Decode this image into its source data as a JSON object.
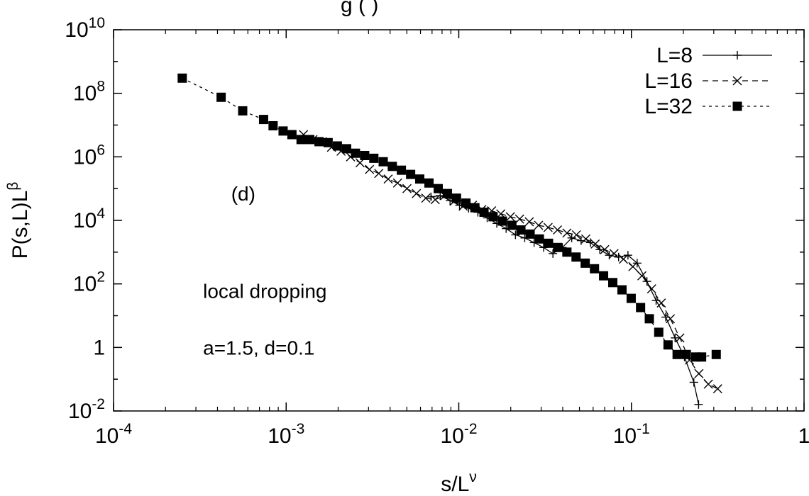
{
  "chart_data": {
    "type": "scatter",
    "title": "",
    "xlabel": {
      "base": "s/L",
      "sup": "ν"
    },
    "ylabel": {
      "base": "P(s,L)L",
      "sup": "β"
    },
    "xscale": "log",
    "yscale": "log",
    "xlim": [
      0.0001,
      1
    ],
    "ylim": [
      0.01,
      10000000000
    ],
    "grid": false,
    "legend_position": "top-right",
    "xticks": [
      {
        "value": 0.0001,
        "base": "10",
        "sup": "-4"
      },
      {
        "value": 0.001,
        "base": "10",
        "sup": "-3"
      },
      {
        "value": 0.01,
        "base": "10",
        "sup": "-2"
      },
      {
        "value": 0.1,
        "base": "10",
        "sup": "-1"
      },
      {
        "value": 1,
        "base": "1",
        "sup": ""
      }
    ],
    "yticks": [
      {
        "value": 0.01,
        "base": "10",
        "sup": "-2"
      },
      {
        "value": 1,
        "base": "1",
        "sup": ""
      },
      {
        "value": 100,
        "base": "10",
        "sup": "2"
      },
      {
        "value": 10000,
        "base": "10",
        "sup": "4"
      },
      {
        "value": 1000000,
        "base": "10",
        "sup": "6"
      },
      {
        "value": 100000000,
        "base": "10",
        "sup": "8"
      },
      {
        "value": 10000000000,
        "base": "10",
        "sup": "10"
      }
    ],
    "annotations": [
      {
        "text": "(d)",
        "x": 0.00048,
        "y": 70000
      },
      {
        "text": "local dropping",
        "x": 0.00033,
        "y": 60
      },
      {
        "text": "a=1.5, d=0.1",
        "x": 0.00033,
        "y": 1
      }
    ],
    "series": [
      {
        "name": "L=8",
        "line": "solid",
        "marker": "plus",
        "points": [
          [
            0.0069,
            55000
          ],
          [
            0.0078,
            60000
          ],
          [
            0.0089,
            42000
          ],
          [
            0.0101,
            30000
          ],
          [
            0.0114,
            24000
          ],
          [
            0.0129,
            18000
          ],
          [
            0.0146,
            12000
          ],
          [
            0.0166,
            8000
          ],
          [
            0.0188,
            5500
          ],
          [
            0.0213,
            3500
          ],
          [
            0.0241,
            2800
          ],
          [
            0.0273,
            2000
          ],
          [
            0.031,
            1400
          ],
          [
            0.0351,
            900
          ],
          [
            0.0398,
            1400
          ],
          [
            0.0451,
            2800
          ],
          [
            0.0511,
            2300
          ],
          [
            0.0579,
            2000
          ],
          [
            0.0656,
            1200
          ],
          [
            0.0744,
            800
          ],
          [
            0.0843,
            700
          ],
          [
            0.0955,
            800
          ],
          [
            0.108,
            450
          ],
          [
            0.123,
            120
          ],
          [
            0.139,
            30
          ],
          [
            0.158,
            9
          ],
          [
            0.179,
            2
          ],
          [
            0.203,
            0.5
          ],
          [
            0.23,
            0.08
          ],
          [
            0.245,
            0.016
          ]
        ]
      },
      {
        "name": "L=16",
        "line": "dashed",
        "marker": "x",
        "points": [
          [
            0.00126,
            5000000
          ],
          [
            0.00143,
            3500000
          ],
          [
            0.00162,
            3000000
          ],
          [
            0.00183,
            2000000
          ],
          [
            0.00208,
            1500000
          ],
          [
            0.00236,
            1000000
          ],
          [
            0.00268,
            650000
          ],
          [
            0.00304,
            400000
          ],
          [
            0.00344,
            300000
          ],
          [
            0.0039,
            200000
          ],
          [
            0.00442,
            150000
          ],
          [
            0.00501,
            100000
          ],
          [
            0.00568,
            70000
          ],
          [
            0.00644,
            50000
          ],
          [
            0.0073,
            45000
          ],
          [
            0.00828,
            60000
          ],
          [
            0.00939,
            40000
          ],
          [
            0.0106,
            28000
          ],
          [
            0.012,
            30000
          ],
          [
            0.0136,
            22000
          ],
          [
            0.0155,
            20000
          ],
          [
            0.0175,
            16000
          ],
          [
            0.0199,
            13000
          ],
          [
            0.0225,
            11000
          ],
          [
            0.0256,
            9000
          ],
          [
            0.029,
            7000
          ],
          [
            0.0329,
            6000
          ],
          [
            0.0373,
            5000
          ],
          [
            0.0423,
            4000
          ],
          [
            0.048,
            3500
          ],
          [
            0.0544,
            2600
          ],
          [
            0.0617,
            1800
          ],
          [
            0.07,
            1200
          ],
          [
            0.0793,
            900
          ],
          [
            0.0899,
            600
          ],
          [
            0.102,
            350
          ],
          [
            0.115,
            180
          ],
          [
            0.131,
            70
          ],
          [
            0.149,
            25
          ],
          [
            0.168,
            8
          ],
          [
            0.191,
            2
          ],
          [
            0.217,
            0.4
          ],
          [
            0.246,
            0.15
          ],
          [
            0.279,
            0.07
          ],
          [
            0.316,
            0.05
          ]
        ]
      },
      {
        "name": "L=32",
        "line": "dotted",
        "marker": "filled-square",
        "points": [
          [
            0.00025,
            300000000
          ],
          [
            0.00042,
            75000000
          ],
          [
            0.00056,
            28000000
          ],
          [
            0.00074,
            15000000
          ],
          [
            0.00084,
            9500000
          ],
          [
            0.00096,
            6500000
          ],
          [
            0.00108,
            5000000
          ],
          [
            0.00122,
            3500000
          ],
          [
            0.00137,
            3500000
          ],
          [
            0.00155,
            3000000
          ],
          [
            0.00175,
            2800000
          ],
          [
            0.00198,
            2200000
          ],
          [
            0.00224,
            1800000
          ],
          [
            0.00252,
            1300000
          ],
          [
            0.00285,
            1100000
          ],
          [
            0.00322,
            900000
          ],
          [
            0.00365,
            700000
          ],
          [
            0.00412,
            500000
          ],
          [
            0.00465,
            380000
          ],
          [
            0.00526,
            280000
          ],
          [
            0.00594,
            200000
          ],
          [
            0.00672,
            150000
          ],
          [
            0.0076,
            100000
          ],
          [
            0.00859,
            70000
          ],
          [
            0.0097,
            50000
          ],
          [
            0.011,
            35000
          ],
          [
            0.0124,
            25000
          ],
          [
            0.014,
            18000
          ],
          [
            0.0158,
            13000
          ],
          [
            0.0179,
            9500
          ],
          [
            0.0203,
            7000
          ],
          [
            0.0229,
            5000
          ],
          [
            0.0259,
            3700
          ],
          [
            0.0293,
            2600
          ],
          [
            0.0331,
            1900
          ],
          [
            0.0374,
            1400
          ],
          [
            0.0423,
            1000
          ],
          [
            0.0478,
            700
          ],
          [
            0.054,
            450
          ],
          [
            0.0611,
            300
          ],
          [
            0.069,
            180
          ],
          [
            0.078,
            110
          ],
          [
            0.0882,
            65
          ],
          [
            0.0997,
            35
          ],
          [
            0.113,
            18
          ],
          [
            0.127,
            8
          ],
          [
            0.144,
            3
          ],
          [
            0.163,
            1.2
          ],
          [
            0.184,
            0.6
          ],
          [
            0.208,
            0.6
          ],
          [
            0.236,
            0.5
          ],
          [
            0.255,
            0.5
          ],
          [
            0.31,
            0.6
          ]
        ]
      }
    ]
  }
}
